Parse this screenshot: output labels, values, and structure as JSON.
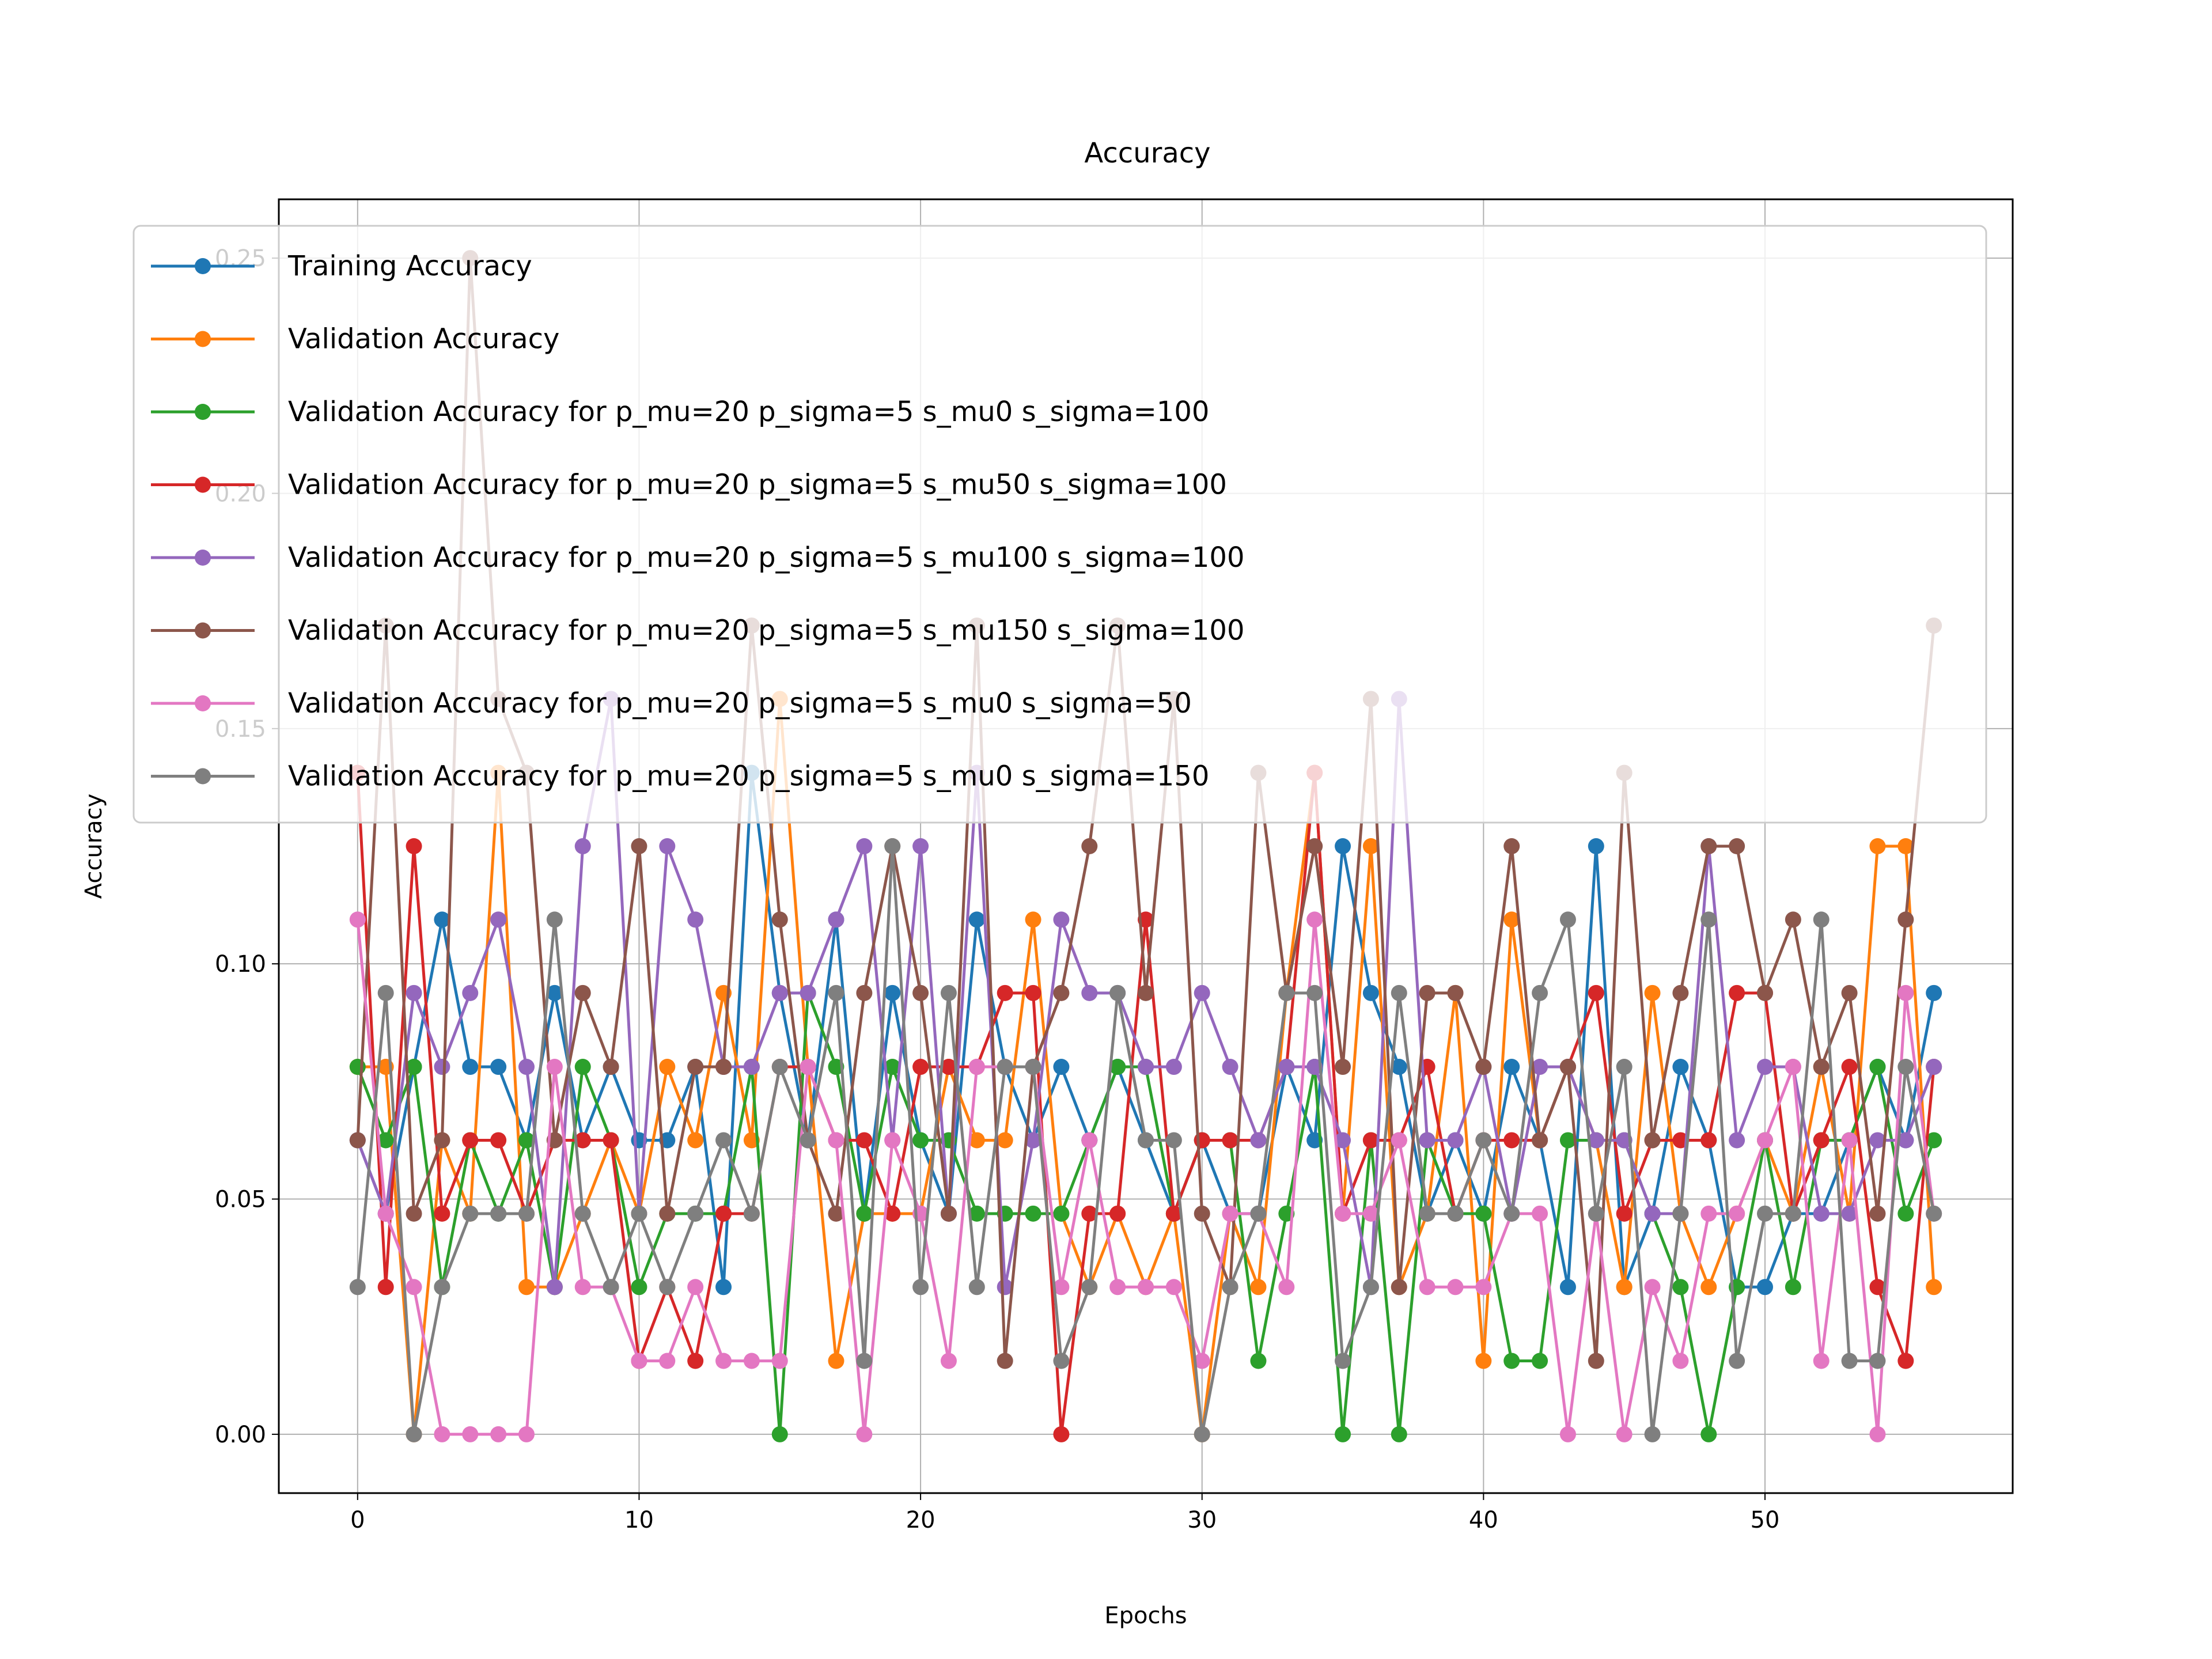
{
  "chart_data": {
    "type": "line",
    "title": "Accuracy",
    "xlabel": "Epochs",
    "ylabel": "Accuracy",
    "xlim": [
      -2.8,
      58.8
    ],
    "ylim": [
      -0.0125,
      0.2625
    ],
    "xticks": [
      0,
      10,
      20,
      30,
      40,
      50
    ],
    "yticks": [
      0.0,
      0.05,
      0.1,
      0.15,
      0.2,
      0.25
    ],
    "xtick_labels": [
      "0",
      "10",
      "20",
      "30",
      "40",
      "50"
    ],
    "ytick_labels": [
      "0.00",
      "0.05",
      "0.10",
      "0.15",
      "0.20",
      "0.25"
    ],
    "grid": true,
    "legend_position": "top-left",
    "x": [
      0,
      1,
      2,
      3,
      4,
      5,
      6,
      7,
      8,
      9,
      10,
      11,
      12,
      13,
      14,
      15,
      16,
      17,
      18,
      19,
      20,
      21,
      22,
      23,
      24,
      25,
      26,
      27,
      28,
      29,
      30,
      31,
      32,
      33,
      34,
      35,
      36,
      37,
      38,
      39,
      40,
      41,
      42,
      43,
      44,
      45,
      46,
      47,
      48,
      49,
      50,
      51,
      52,
      53,
      54,
      55,
      56
    ],
    "series": [
      {
        "name": "Training Accuracy",
        "color": "#1f77b4",
        "values": [
          0.0625,
          0.0469,
          0.0781,
          0.1094,
          0.0781,
          0.0781,
          0.0625,
          0.0938,
          0.0625,
          0.0781,
          0.0625,
          0.0625,
          0.0781,
          0.0313,
          0.1406,
          0.0938,
          0.0625,
          0.1094,
          0.0469,
          0.0938,
          0.0625,
          0.0469,
          0.1094,
          0.0781,
          0.0625,
          0.0781,
          0.0625,
          0.0781,
          0.0625,
          0.0469,
          0.0625,
          0.0469,
          0.0469,
          0.0781,
          0.0625,
          0.125,
          0.0938,
          0.0781,
          0.0469,
          0.0625,
          0.0469,
          0.0781,
          0.0625,
          0.0313,
          0.125,
          0.0313,
          0.0469,
          0.0781,
          0.0625,
          0.0313,
          0.0313,
          0.0469,
          0.0469,
          0.0625,
          0.0781,
          0.0625,
          0.0938
        ]
      },
      {
        "name": "Validation Accuracy",
        "color": "#ff7f0e",
        "values": [
          0.0781,
          0.0781,
          0.0,
          0.0625,
          0.0469,
          0.1406,
          0.0313,
          0.0313,
          0.0469,
          0.0625,
          0.0469,
          0.0781,
          0.0625,
          0.0938,
          0.0625,
          0.1563,
          0.0781,
          0.0156,
          0.0469,
          0.0469,
          0.0469,
          0.0781,
          0.0625,
          0.0625,
          0.1094,
          0.0469,
          0.0313,
          0.0469,
          0.0313,
          0.0469,
          0.0,
          0.0469,
          0.0313,
          0.0938,
          0.1406,
          0.0469,
          0.125,
          0.0313,
          0.0469,
          0.0938,
          0.0156,
          0.1094,
          0.0625,
          0.0781,
          0.0625,
          0.0313,
          0.0938,
          0.0469,
          0.0313,
          0.0469,
          0.0625,
          0.0469,
          0.0781,
          0.0469,
          0.125,
          0.125,
          0.0313
        ]
      },
      {
        "name": "Validation Accuracy for p_mu=20 p_sigma=5 s_mu0 s_sigma=100",
        "color": "#2ca02c",
        "values": [
          0.0781,
          0.0625,
          0.0781,
          0.0313,
          0.0625,
          0.0469,
          0.0625,
          0.0313,
          0.0781,
          0.0625,
          0.0313,
          0.0469,
          0.0469,
          0.0469,
          0.0781,
          0.0,
          0.0938,
          0.0781,
          0.0469,
          0.0781,
          0.0625,
          0.0625,
          0.0469,
          0.0469,
          0.0469,
          0.0469,
          0.0625,
          0.0781,
          0.0781,
          0.0469,
          0.0625,
          0.0625,
          0.0156,
          0.0469,
          0.0781,
          0.0,
          0.0625,
          0.0,
          0.0625,
          0.0469,
          0.0469,
          0.0156,
          0.0156,
          0.0625,
          0.0625,
          0.0625,
          0.0469,
          0.0313,
          0.0,
          0.0313,
          0.0625,
          0.0313,
          0.0625,
          0.0625,
          0.0781,
          0.0469,
          0.0625
        ]
      },
      {
        "name": "Validation Accuracy for p_mu=20 p_sigma=5 s_mu50 s_sigma=100",
        "color": "#d62728",
        "values": [
          0.1406,
          0.0313,
          0.125,
          0.0469,
          0.0625,
          0.0625,
          0.0469,
          0.0625,
          0.0625,
          0.0625,
          0.0156,
          0.0313,
          0.0156,
          0.0469,
          0.0469,
          0.0781,
          0.0781,
          0.0625,
          0.0625,
          0.0469,
          0.0781,
          0.0781,
          0.0781,
          0.0938,
          0.0938,
          0.0,
          0.0469,
          0.0469,
          0.1094,
          0.0469,
          0.0625,
          0.0625,
          0.0625,
          0.0781,
          0.1406,
          0.0469,
          0.0625,
          0.0625,
          0.0781,
          0.0469,
          0.0625,
          0.0625,
          0.0625,
          0.0781,
          0.0938,
          0.0469,
          0.0625,
          0.0625,
          0.0625,
          0.0938,
          0.0938,
          0.0469,
          0.0625,
          0.0781,
          0.0313,
          0.0156,
          0.0781
        ]
      },
      {
        "name": "Validation Accuracy for p_mu=20 p_sigma=5 s_mu100 s_sigma=100",
        "color": "#9467bd",
        "values": [
          0.0625,
          0.0469,
          0.0938,
          0.0781,
          0.0938,
          0.1094,
          0.0781,
          0.0313,
          0.125,
          0.1563,
          0.0469,
          0.125,
          0.1094,
          0.0781,
          0.0781,
          0.0938,
          0.0938,
          0.1094,
          0.125,
          0.0625,
          0.125,
          0.0469,
          0.1406,
          0.0313,
          0.0625,
          0.1094,
          0.0938,
          0.0938,
          0.0781,
          0.0781,
          0.0938,
          0.0781,
          0.0625,
          0.0781,
          0.0781,
          0.0625,
          0.0313,
          0.1563,
          0.0625,
          0.0625,
          0.0781,
          0.0469,
          0.0781,
          0.0781,
          0.0625,
          0.0625,
          0.0469,
          0.0469,
          0.125,
          0.0625,
          0.0781,
          0.0781,
          0.0469,
          0.0469,
          0.0625,
          0.0625,
          0.0781
        ]
      },
      {
        "name": "Validation Accuracy for p_mu=20 p_sigma=5 s_mu150 s_sigma=100",
        "color": "#8c564b",
        "values": [
          0.0625,
          0.1719,
          0.0469,
          0.0625,
          0.25,
          0.1563,
          0.1406,
          0.0625,
          0.0938,
          0.0781,
          0.125,
          0.0469,
          0.0781,
          0.0781,
          0.1719,
          0.1094,
          0.0625,
          0.0469,
          0.0938,
          0.125,
          0.0938,
          0.0469,
          0.1719,
          0.0156,
          0.0781,
          0.0938,
          0.125,
          0.1719,
          0.0938,
          0.1563,
          0.0469,
          0.0313,
          0.1406,
          0.0938,
          0.125,
          0.0781,
          0.1563,
          0.0313,
          0.0938,
          0.0938,
          0.0781,
          0.125,
          0.0625,
          0.0781,
          0.0156,
          0.1406,
          0.0625,
          0.0938,
          0.125,
          0.125,
          0.0938,
          0.1094,
          0.0781,
          0.0938,
          0.0469,
          0.1094,
          0.1719
        ]
      },
      {
        "name": "Validation Accuracy for p_mu=20 p_sigma=5 s_mu0 s_sigma=50",
        "color": "#e377c2",
        "values": [
          0.1094,
          0.0469,
          0.0313,
          0.0,
          0.0,
          0.0,
          0.0,
          0.0781,
          0.0313,
          0.0313,
          0.0156,
          0.0156,
          0.0313,
          0.0156,
          0.0156,
          0.0156,
          0.0781,
          0.0625,
          0.0,
          0.0625,
          0.0469,
          0.0156,
          0.0781,
          0.0781,
          0.0781,
          0.0313,
          0.0625,
          0.0313,
          0.0313,
          0.0313,
          0.0156,
          0.0469,
          0.0469,
          0.0313,
          0.1094,
          0.0469,
          0.0469,
          0.0625,
          0.0313,
          0.0313,
          0.0313,
          0.0469,
          0.0469,
          0.0,
          0.0469,
          0.0,
          0.0313,
          0.0156,
          0.0469,
          0.0469,
          0.0625,
          0.0781,
          0.0156,
          0.0625,
          0.0,
          0.0938,
          0.0469
        ]
      },
      {
        "name": "Validation Accuracy for p_mu=20 p_sigma=5 s_mu0 s_sigma=150",
        "color": "#7f7f7f",
        "values": [
          0.0313,
          0.0938,
          0.0,
          0.0313,
          0.0469,
          0.0469,
          0.0469,
          0.1094,
          0.0469,
          0.0313,
          0.0469,
          0.0313,
          0.0469,
          0.0625,
          0.0469,
          0.0781,
          0.0625,
          0.0938,
          0.0156,
          0.125,
          0.0313,
          0.0938,
          0.0313,
          0.0781,
          0.0781,
          0.0156,
          0.0313,
          0.0938,
          0.0625,
          0.0625,
          0.0,
          0.0313,
          0.0469,
          0.0938,
          0.0938,
          0.0156,
          0.0313,
          0.0938,
          0.0469,
          0.0469,
          0.0625,
          0.0469,
          0.0938,
          0.1094,
          0.0469,
          0.0781,
          0.0,
          0.0469,
          0.1094,
          0.0156,
          0.0469,
          0.0469,
          0.1094,
          0.0156,
          0.0156,
          0.0781,
          0.0469
        ]
      }
    ]
  }
}
